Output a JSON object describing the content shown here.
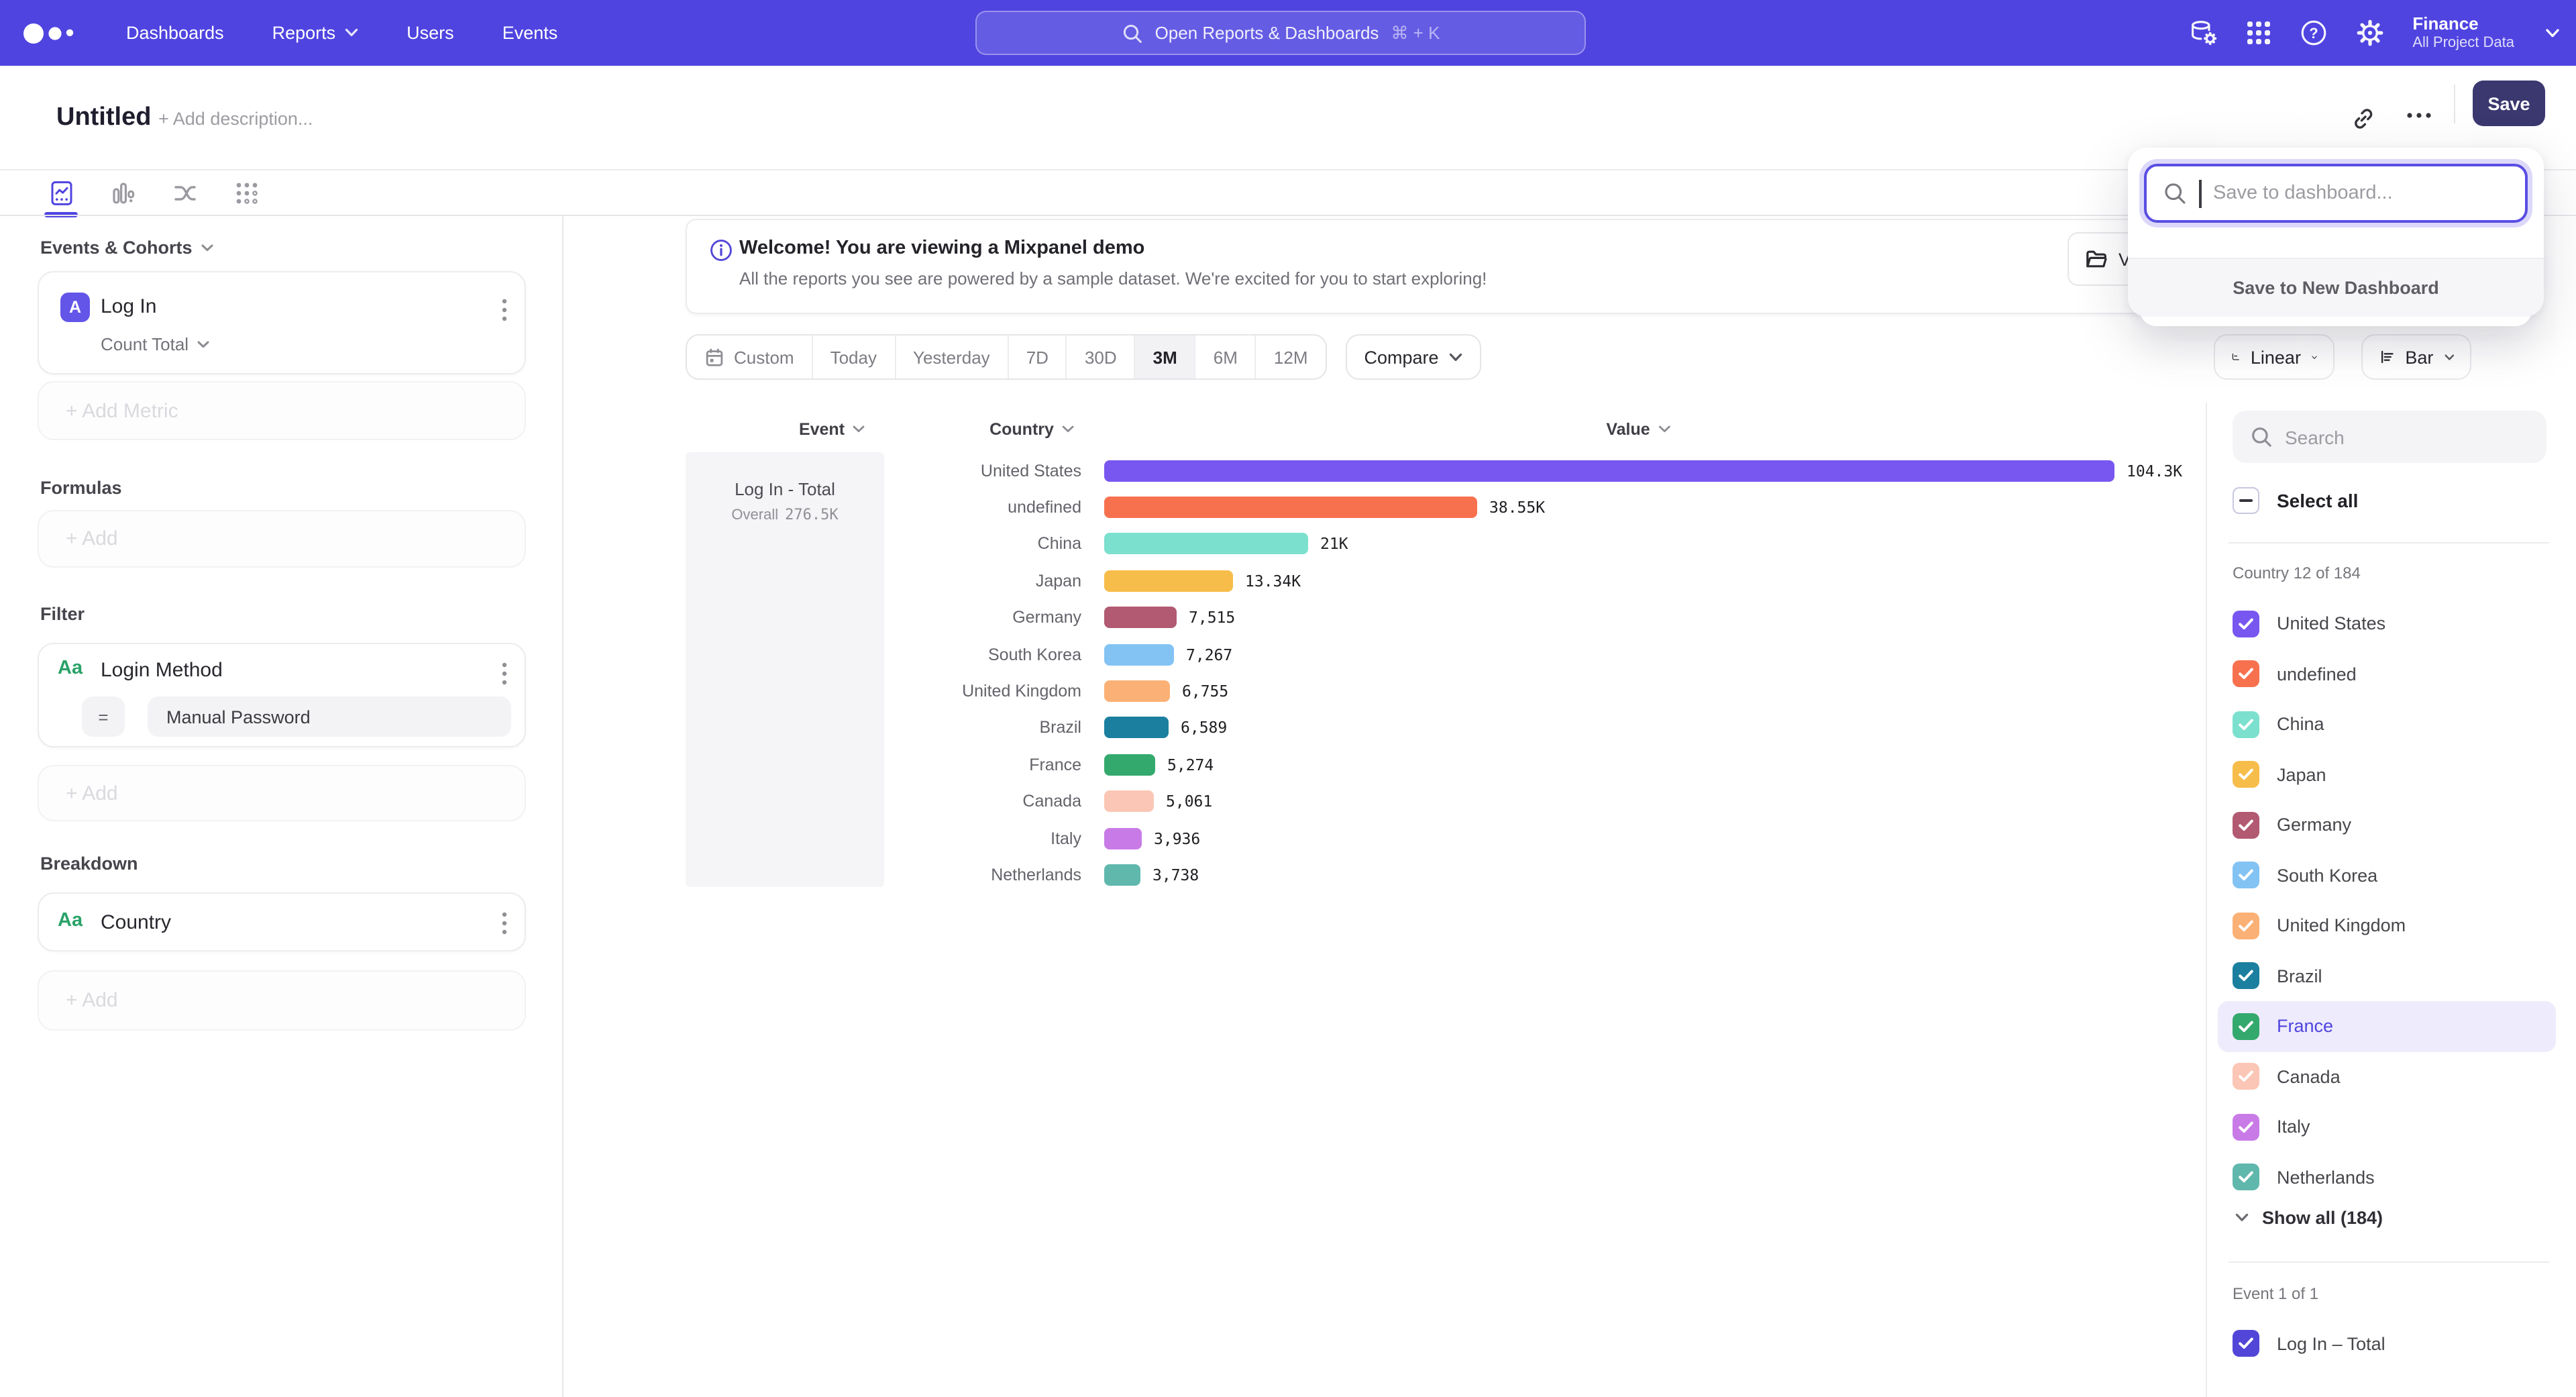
{
  "colors": {
    "nav_bg": "#4f44e0",
    "accent": "#4f44e0",
    "save_button": "#3b376f",
    "highlight_row_bg": "#eeebfc"
  },
  "top_nav": {
    "items": [
      {
        "label": "Dashboards",
        "chevron": false
      },
      {
        "label": "Reports",
        "chevron": true
      },
      {
        "label": "Users",
        "chevron": false
      },
      {
        "label": "Events",
        "chevron": false
      }
    ],
    "search": {
      "placeholder": "Open Reports & Dashboards",
      "shortcut": "⌘ + K"
    },
    "project": {
      "name": "Finance",
      "scope": "All Project Data"
    }
  },
  "title_bar": {
    "title": "Untitled",
    "add_description": "+ Add description...",
    "save_label": "Save"
  },
  "save_popup": {
    "placeholder": "Save to dashboard...",
    "footer": "Save to New Dashboard"
  },
  "sidebar": {
    "events_cohorts_label": "Events & Cohorts",
    "metric": {
      "badge": "A",
      "name": "Log In",
      "aggregation": "Count Total"
    },
    "add_metric_label": "+ Add Metric",
    "formulas_label": "Formulas",
    "add_label": "+ Add",
    "filter_label": "Filter",
    "filter": {
      "badge": "Aa",
      "name": "Login Method",
      "operator": "=",
      "value": "Manual Password"
    },
    "breakdown_label": "Breakdown",
    "breakdown": {
      "badge": "Aa",
      "name": "Country"
    }
  },
  "banner": {
    "title": "Welcome! You are viewing a Mixpanel demo",
    "subtitle": "All the reports you see are powered by a sample dataset. We're excited for you to start exploring!",
    "partial_button_text": "V"
  },
  "controls": {
    "date_ranges": [
      "Custom",
      "Today",
      "Yesterday",
      "7D",
      "30D",
      "3M",
      "6M",
      "12M"
    ],
    "active_range": "3M",
    "compare_label": "Compare",
    "scale_label": "Linear",
    "type_label": "Bar"
  },
  "chart_data": {
    "type": "bar",
    "orientation": "horizontal",
    "columns": [
      "Event",
      "Country",
      "Value"
    ],
    "event_cell": {
      "name": "Log In - Total",
      "overall_label": "Overall",
      "overall_value": "276.5K"
    },
    "categories": [
      "United States",
      "undefined",
      "China",
      "Japan",
      "Germany",
      "South Korea",
      "United Kingdom",
      "Brazil",
      "France",
      "Canada",
      "Italy",
      "Netherlands"
    ],
    "values": [
      104300,
      38550,
      21000,
      13340,
      7515,
      7267,
      6755,
      6589,
      5274,
      5061,
      3936,
      3738
    ],
    "value_labels": [
      "104.3K",
      "38.55K",
      "21K",
      "13.34K",
      "7,515",
      "7,267",
      "6,755",
      "6,589",
      "5,274",
      "5,061",
      "3,936",
      "3,738"
    ],
    "colors": [
      "#7857F0",
      "#F8714F",
      "#7CE0CE",
      "#F7BD4A",
      "#B15A71",
      "#83C3F4",
      "#FBB176",
      "#1B7F9F",
      "#34A96D",
      "#FBC6B5",
      "#C87BE7",
      "#60B8AD"
    ],
    "xmax": 104300,
    "grid": false,
    "legend_position": "right-panel-checkboxes"
  },
  "right_panel": {
    "search_placeholder": "Search",
    "select_all_label": "Select all",
    "group_label": "Country 12 of 184",
    "items": [
      {
        "label": "United States",
        "color": "#7857F0",
        "checked": true,
        "highlighted": false
      },
      {
        "label": "undefined",
        "color": "#F8714F",
        "checked": true,
        "highlighted": false
      },
      {
        "label": "China",
        "color": "#7CE0CE",
        "checked": true,
        "highlighted": false
      },
      {
        "label": "Japan",
        "color": "#F7BD4A",
        "checked": true,
        "highlighted": false
      },
      {
        "label": "Germany",
        "color": "#B15A71",
        "checked": true,
        "highlighted": false
      },
      {
        "label": "South Korea",
        "color": "#83C3F4",
        "checked": true,
        "highlighted": false
      },
      {
        "label": "United Kingdom",
        "color": "#FBB176",
        "checked": true,
        "highlighted": false
      },
      {
        "label": "Brazil",
        "color": "#1B7F9F",
        "checked": true,
        "highlighted": false
      },
      {
        "label": "France",
        "color": "#34A96D",
        "checked": true,
        "highlighted": true
      },
      {
        "label": "Canada",
        "color": "#FBC6B5",
        "checked": true,
        "highlighted": false
      },
      {
        "label": "Italy",
        "color": "#C87BE7",
        "checked": true,
        "highlighted": false
      },
      {
        "label": "Netherlands",
        "color": "#60B8AD",
        "checked": true,
        "highlighted": false
      }
    ],
    "show_all_label": "Show all (184)",
    "event_group_label": "Event 1 of 1",
    "event_item": {
      "label": "Log In – Total",
      "color": "#5246D8",
      "checked": true
    }
  }
}
